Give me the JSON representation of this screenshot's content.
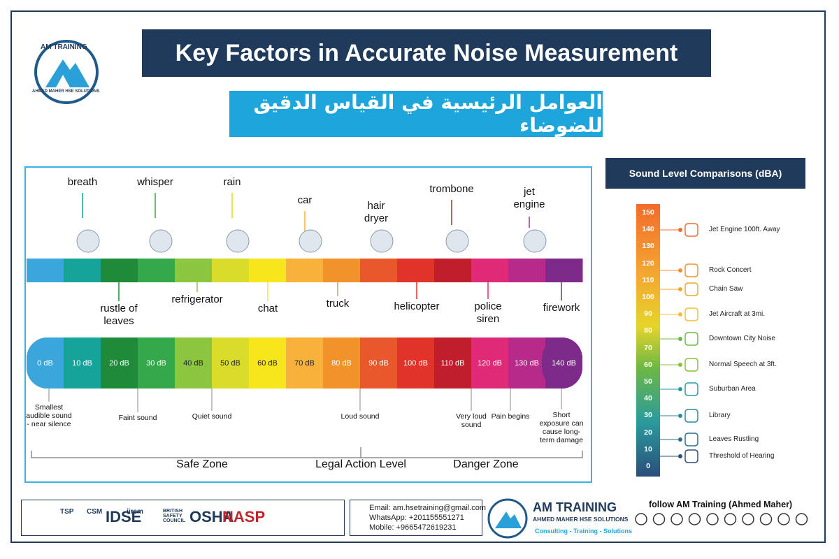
{
  "header": {
    "brand": "AM TRAINING",
    "brand_sub": "AHMED MAHER HSE SOLUTIONS",
    "title": "Key Factors in Accurate Noise Measurement",
    "subtitle_ar": "العوامل الرئيسية في القياس الدقيق للضوضاء"
  },
  "scale": {
    "top_sources": [
      "breath",
      "whisper",
      "rain",
      "car",
      "hair dryer",
      "trombone",
      "jet engine"
    ],
    "bottom_sources": [
      "rustle of leaves",
      "refrigerator",
      "chat",
      "truck",
      "helicopter",
      "police siren",
      "firework"
    ],
    "levels": [
      "0 dB",
      "10 dB",
      "20 dB",
      "30 dB",
      "40 dB",
      "50 dB",
      "60 dB",
      "70 dB",
      "80 dB",
      "90 dB",
      "100 dB",
      "110 dB",
      "120 dB",
      "130 dB",
      "140 dB"
    ],
    "descriptions": [
      "Smallest audible sound - near silence",
      "Faint sound",
      "Quiet sound",
      "Loud sound",
      "Very loud sound",
      "Pain begins",
      "Short exposure can cause long-term damage"
    ],
    "zones": [
      "Safe Zone",
      "Legal Action Level",
      "Danger Zone"
    ]
  },
  "comparison": {
    "title": "Sound Level Comparisons (dBA)",
    "ticks": [
      150,
      140,
      130,
      120,
      110,
      100,
      90,
      80,
      70,
      60,
      50,
      40,
      30,
      20,
      10,
      0
    ],
    "items": [
      "Jet Engine 100ft. Away",
      "Rock Concert",
      "Chain Saw",
      "Jet Aircraft at 3mi.",
      "Downtown City Noise",
      "Normal Speech at 3ft.",
      "Suburban Area",
      "Library",
      "Leaves Rustling",
      "Threshold of Hearing"
    ]
  },
  "footer": {
    "logos": [
      "TSP",
      "CSM",
      "IDSE",
      "iirsm",
      "BRITISH SAFETY COUNCIL",
      "OSHA",
      "NASP"
    ],
    "email": "Email: am.hsetraining@gmail.com",
    "whatsapp": "WhatsApp: +201155551271",
    "mobile": "Mobile: +9665472619231",
    "brand": "AM TRAINING",
    "brand_sub": "AHMED MAHER HSE SOLUTIONS",
    "tagline": "Consulting - Training - Solutions",
    "follow": "follow AM Training (Ahmed Maher)"
  }
}
